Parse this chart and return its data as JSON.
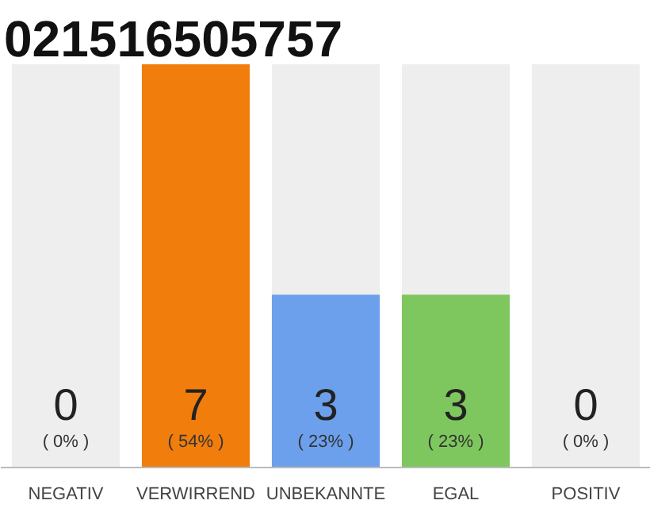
{
  "chart_data": {
    "type": "bar",
    "title": "021516505757",
    "categories": [
      "NEGATIV",
      "VERWIRREND",
      "UNBEKANNTE",
      "EGAL",
      "POSITIV"
    ],
    "values": [
      0,
      7,
      3,
      3,
      0
    ],
    "colors": [
      "#f07d0c",
      "#f07d0c",
      "#6ca0ec",
      "#7ec75f",
      "#7ec75f"
    ],
    "data_labels": true,
    "ylim": [
      0,
      7
    ],
    "tick_labels": "x",
    "bands": [
      {
        "axis": "x",
        "from": "NEGATIV",
        "to": "NEGATIV",
        "color": "#eeeeee"
      },
      {
        "axis": "x",
        "from": "UNBEKANNTE",
        "to": "UNBEKANNTE",
        "color": "#eeeeee"
      },
      {
        "axis": "x",
        "from": "EGAL",
        "to": "EGAL",
        "color": "#eeeeee"
      },
      {
        "axis": "x",
        "from": "POSITIV",
        "to": "POSITIV",
        "color": "#eeeeee"
      }
    ],
    "annotations": [
      "( 0% )",
      "( 54% )",
      "( 23% )",
      "( 23% )",
      "( 0% )"
    ]
  }
}
